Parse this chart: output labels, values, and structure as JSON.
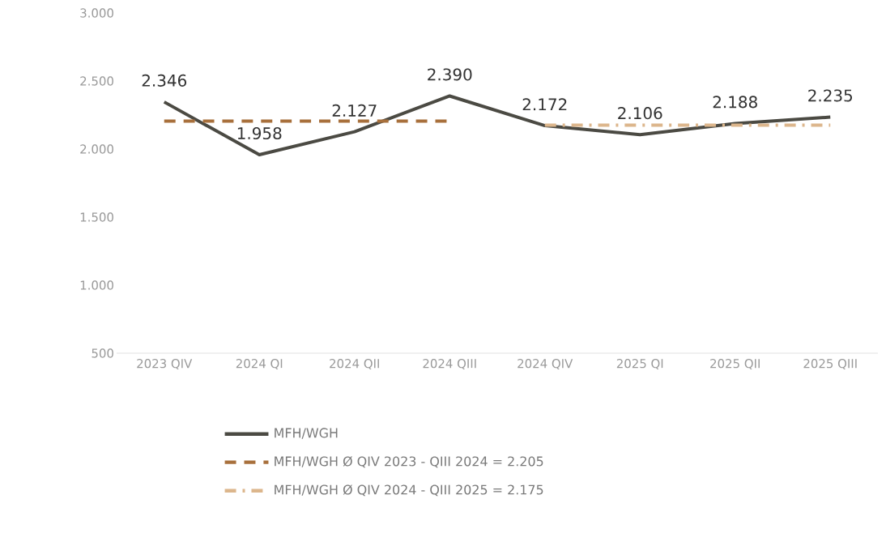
{
  "chart_data": {
    "type": "line",
    "categories": [
      "2023 QIV",
      "2024 QI",
      "2024 QII",
      "2024 QIII",
      "2024 QIV",
      "2025 QI",
      "2025 QII",
      "2025 QIII"
    ],
    "series": [
      {
        "name": "MFH/WGH",
        "color": "#4b4a43",
        "line_style": "solid",
        "values": [
          2346,
          1958,
          2127,
          2390,
          2172,
          2106,
          2188,
          2235
        ],
        "value_labels": [
          "2.346",
          "1.958",
          "2.127",
          "2.390",
          "2.172",
          "2.106",
          "2.188",
          "2.235"
        ]
      },
      {
        "name": "MFH/WGH Ø QIV 2023 - QIII 2024 = 2.205",
        "color": "#a8703c",
        "line_style": "dashed",
        "values": [
          2205,
          2205,
          2205,
          2205,
          null,
          null,
          null,
          null
        ]
      },
      {
        "name": "MFH/WGH Ø QIV 2024 - QIII 2025 = 2.175",
        "color": "#dcb68c",
        "line_style": "dashdot",
        "values": [
          null,
          null,
          null,
          null,
          2175,
          2175,
          2175,
          2175
        ]
      }
    ],
    "ylim": [
      500,
      3000
    ],
    "yticks": [
      {
        "value": 500,
        "label": "500"
      },
      {
        "value": 1000,
        "label": "1.000"
      },
      {
        "value": 1500,
        "label": "1.500"
      },
      {
        "value": 2000,
        "label": "2.000"
      },
      {
        "value": 2500,
        "label": "2.500"
      },
      {
        "value": 3000,
        "label": "3.000"
      }
    ],
    "grid": false,
    "legend": "bottom",
    "marker": "none"
  }
}
